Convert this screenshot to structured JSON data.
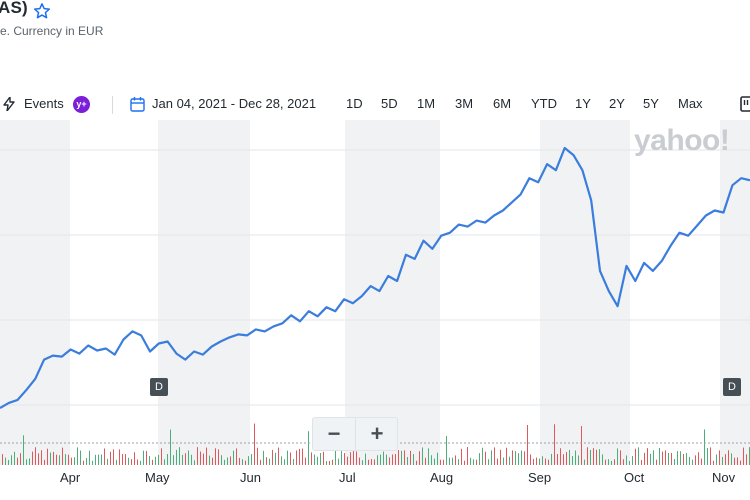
{
  "header": {
    "title": "AS)",
    "subtitle": "e. Currency in EUR"
  },
  "toolbar": {
    "events_label": "Events",
    "premium_badge": "y+",
    "date_range": "Jan 04, 2021 - Dec 28, 2021",
    "ranges": [
      "1D",
      "5D",
      "1M",
      "3M",
      "6M",
      "YTD",
      "1Y",
      "2Y",
      "5Y",
      "Max"
    ]
  },
  "watermark": "yahoo!",
  "badges": [
    "D",
    "D"
  ],
  "volume_controls": {
    "minus": "−",
    "plus": "+"
  },
  "colors": {
    "line": "#3b7ddd",
    "up": "#4caf7a",
    "down": "#e0585b",
    "band": "#f1f2f4"
  },
  "chart_data": {
    "type": "line",
    "x": [
      "Mar 16",
      "Mar 18",
      "Mar 22",
      "Mar 24",
      "Mar 26",
      "Mar 30",
      "Apr 1",
      "Apr 6",
      "Apr 8",
      "Apr 12",
      "Apr 14",
      "Apr 16",
      "Apr 20",
      "Apr 22",
      "Apr 26",
      "Apr 28",
      "Apr 30",
      "May 4",
      "May 6",
      "May 10",
      "May 12",
      "May 14",
      "May 18",
      "May 20",
      "May 24",
      "May 26",
      "May 28",
      "Jun 1",
      "Jun 3",
      "Jun 7",
      "Jun 9",
      "Jun 11",
      "Jun 15",
      "Jun 17",
      "Jun 21",
      "Jun 23",
      "Jun 25",
      "Jun 29",
      "Jul 1",
      "Jul 5",
      "Jul 7",
      "Jul 9",
      "Jul 13",
      "Jul 15",
      "Jul 19",
      "Jul 21",
      "Jul 23",
      "Jul 27",
      "Jul 29",
      "Aug 2",
      "Aug 4",
      "Aug 6",
      "Aug 10",
      "Aug 12",
      "Aug 16",
      "Aug 18",
      "Aug 20",
      "Aug 24",
      "Aug 26",
      "Aug 30",
      "Sep 1",
      "Sep 3",
      "Sep 7",
      "Sep 9",
      "Sep 13",
      "Sep 15",
      "Sep 17",
      "Sep 21",
      "Sep 23",
      "Sep 27",
      "Sep 29",
      "Oct 1",
      "Oct 5",
      "Oct 7",
      "Oct 11",
      "Oct 13",
      "Oct 15",
      "Oct 19",
      "Oct 21",
      "Oct 25",
      "Oct 27",
      "Oct 29",
      "Nov 2",
      "Nov 4",
      "Nov 8",
      "Nov 10"
    ],
    "values": [
      4,
      9,
      12,
      22,
      33,
      52,
      56,
      55,
      62,
      58,
      66,
      61,
      63,
      57,
      72,
      80,
      76,
      60,
      68,
      70,
      58,
      52,
      60,
      57,
      65,
      70,
      74,
      77,
      76,
      82,
      80,
      85,
      88,
      96,
      90,
      100,
      95,
      104,
      100,
      112,
      108,
      115,
      125,
      120,
      135,
      130,
      156,
      152,
      170,
      162,
      175,
      178,
      186,
      184,
      190,
      188,
      195,
      200,
      208,
      216,
      232,
      228,
      246,
      240,
      262,
      255,
      240,
      210,
      140,
      120,
      105,
      145,
      130,
      148,
      140,
      150,
      165,
      178,
      175,
      185,
      195,
      200,
      198,
      225,
      232,
      230
    ],
    "x_tick_labels": [
      "Apr",
      "May",
      "Jun",
      "Jul",
      "Aug",
      "Sep",
      "Oct",
      "Nov"
    ],
    "grid": true
  }
}
